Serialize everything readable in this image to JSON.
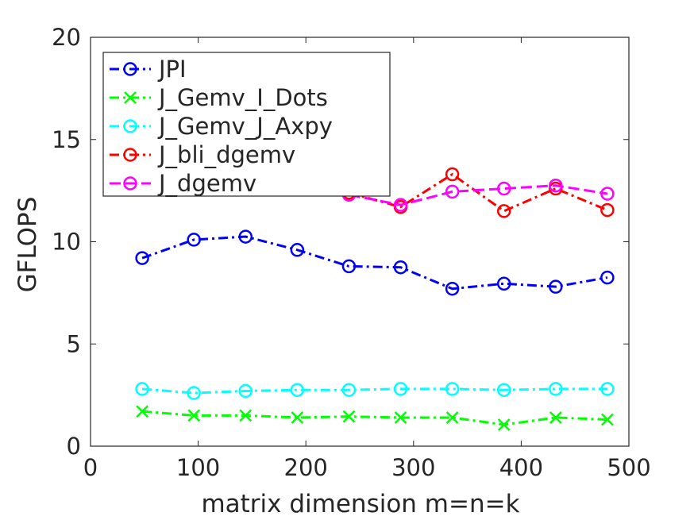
{
  "chart_data": {
    "type": "line",
    "title": "",
    "xlabel": "matrix dimension m=n=k",
    "ylabel": "GFLOPS",
    "xlim": [
      0,
      500
    ],
    "ylim": [
      0,
      20
    ],
    "xticks": [
      0,
      100,
      200,
      300,
      400,
      500
    ],
    "yticks": [
      0,
      5,
      10,
      15,
      20
    ],
    "xtick_labels": [
      "0",
      "100",
      "200",
      "300",
      "400",
      "500"
    ],
    "ytick_labels": [
      "0",
      "5",
      "10",
      "15",
      "20"
    ],
    "grid": false,
    "legend_position": "top-left",
    "x": [
      48,
      96,
      144,
      192,
      240,
      288,
      336,
      384,
      432,
      480
    ],
    "series": [
      {
        "name": "JPI",
        "color": "#0000ff",
        "marker": "circle",
        "line": "dash-dot",
        "values": [
          9.2,
          10.1,
          10.25,
          9.6,
          8.8,
          8.75,
          7.7,
          7.95,
          7.8,
          8.25
        ]
      },
      {
        "name": "J_Gemv_I_Dots",
        "color": "#00ff00",
        "marker": "x",
        "line": "dash-dot",
        "values": [
          1.7,
          1.5,
          1.5,
          1.4,
          1.45,
          1.4,
          1.4,
          1.05,
          1.4,
          1.3
        ]
      },
      {
        "name": "J_Gemv_J_Axpy",
        "color": "#00ffff",
        "marker": "circle",
        "line": "dash-dot",
        "values": [
          2.8,
          2.6,
          2.7,
          2.75,
          2.75,
          2.8,
          2.8,
          2.75,
          2.8,
          2.8
        ]
      },
      {
        "name": "J_bli_dgemv",
        "color": "#ff0000",
        "marker": "circle",
        "line": "dash-dot",
        "values": [
          null,
          null,
          null,
          null,
          12.4,
          11.7,
          13.3,
          11.5,
          12.6,
          11.55
        ]
      },
      {
        "name": "J_dgemv",
        "color": "#ff00ff",
        "marker": "circle",
        "line": "dash",
        "values": [
          null,
          null,
          null,
          null,
          12.3,
          11.8,
          12.45,
          12.6,
          12.75,
          12.35
        ]
      }
    ]
  }
}
